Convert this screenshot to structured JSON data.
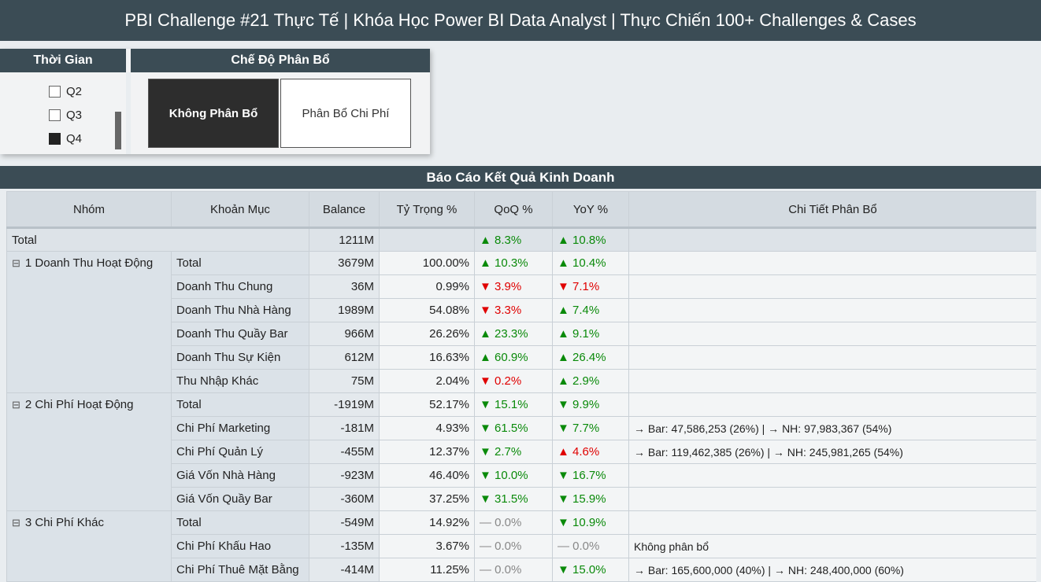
{
  "header": {
    "title": "PBI Challenge #21 Thực Tế | Khóa Học Power BI Data Analyst | Thực Chiến 100+ Challenges & Cases"
  },
  "time_slicer": {
    "title": "Thời Gian",
    "options": [
      {
        "label": "Q2",
        "checked": false
      },
      {
        "label": "Q3",
        "checked": false
      },
      {
        "label": "Q4",
        "checked": true
      }
    ]
  },
  "mode_slicer": {
    "title": "Chế Độ Phân Bổ",
    "options": [
      {
        "label": "Không Phân Bổ",
        "selected": true
      },
      {
        "label": "Phân Bổ Chi Phí",
        "selected": false
      }
    ]
  },
  "report": {
    "title": "Báo Cáo Kết Quả Kinh Doanh",
    "columns": [
      "Nhóm",
      "Khoản Mục",
      "Balance",
      "Tỷ Trọng %",
      "QoQ %",
      "YoY %",
      "Chi Tiết Phân Bổ"
    ],
    "total_row": {
      "label": "Total",
      "balance": "1211M",
      "qoq": "▲ 8.3%",
      "qoq_color": "#0a8a0a",
      "yoy": "▲ 10.8%",
      "yoy_color": "#0a8a0a"
    },
    "groups": [
      {
        "name": "1 Doanh Thu Hoạt Động",
        "rows": [
          {
            "item": "Total",
            "balance": "3679M",
            "share": "100.00%",
            "qoq": "▲ 10.3%",
            "qoq_color": "#0a8a0a",
            "yoy": "▲ 10.4%",
            "yoy_color": "#0a8a0a"
          },
          {
            "item": "Doanh Thu Chung",
            "balance": "36M",
            "share": "0.99%",
            "qoq": "▼ 3.9%",
            "qoq_color": "#e00000",
            "yoy": "▼ 7.1%",
            "yoy_color": "#e00000"
          },
          {
            "item": "Doanh Thu Nhà Hàng",
            "balance": "1989M",
            "share": "54.08%",
            "qoq": "▼ 3.3%",
            "qoq_color": "#e00000",
            "yoy": "▲ 7.4%",
            "yoy_color": "#0a8a0a"
          },
          {
            "item": "Doanh Thu Quầy Bar",
            "balance": "966M",
            "share": "26.26%",
            "qoq": "▲ 23.3%",
            "qoq_color": "#0a8a0a",
            "yoy": "▲ 9.1%",
            "yoy_color": "#0a8a0a"
          },
          {
            "item": "Doanh Thu Sự Kiện",
            "balance": "612M",
            "share": "16.63%",
            "qoq": "▲ 60.9%",
            "qoq_color": "#0a8a0a",
            "yoy": "▲ 26.4%",
            "yoy_color": "#0a8a0a"
          },
          {
            "item": "Thu Nhập Khác",
            "balance": "75M",
            "share": "2.04%",
            "qoq": "▼ 0.2%",
            "qoq_color": "#e00000",
            "yoy": "▲ 2.9%",
            "yoy_color": "#0a8a0a"
          }
        ]
      },
      {
        "name": "2 Chi Phí Hoạt Động",
        "rows": [
          {
            "item": "Total",
            "balance": "-1919M",
            "share": "52.17%",
            "qoq": "▼ 15.1%",
            "qoq_color": "#0a8a0a",
            "yoy": "▼ 9.9%",
            "yoy_color": "#0a8a0a"
          },
          {
            "item": "Chi Phí Marketing",
            "balance": "-181M",
            "share": "4.93%",
            "qoq": "▼ 61.5%",
            "qoq_color": "#0a8a0a",
            "yoy": "▼ 7.7%",
            "yoy_color": "#0a8a0a",
            "detail": "→ Bar: 47,586,253 (26%) | → NH: 97,983,367 (54%)"
          },
          {
            "item": "Chi Phí Quản Lý",
            "balance": "-455M",
            "share": "12.37%",
            "qoq": "▼ 2.7%",
            "qoq_color": "#0a8a0a",
            "yoy": "▲ 4.6%",
            "yoy_color": "#e00000",
            "detail": "→ Bar: 119,462,385 (26%) | → NH: 245,981,265 (54%)"
          },
          {
            "item": "Giá Vốn Nhà Hàng",
            "balance": "-923M",
            "share": "46.40%",
            "qoq": "▼ 10.0%",
            "qoq_color": "#0a8a0a",
            "yoy": "▼ 16.7%",
            "yoy_color": "#0a8a0a"
          },
          {
            "item": "Giá Vốn Quầy Bar",
            "balance": "-360M",
            "share": "37.25%",
            "qoq": "▼ 31.5%",
            "qoq_color": "#0a8a0a",
            "yoy": "▼ 15.9%",
            "yoy_color": "#0a8a0a"
          }
        ]
      },
      {
        "name": "3 Chi Phí Khác",
        "rows": [
          {
            "item": "Total",
            "balance": "-549M",
            "share": "14.92%",
            "qoq": "— 0.0%",
            "qoq_color": "#888888",
            "yoy": "▼ 10.9%",
            "yoy_color": "#0a8a0a"
          },
          {
            "item": "Chi Phí Khấu Hao",
            "balance": "-135M",
            "share": "3.67%",
            "qoq": "— 0.0%",
            "qoq_color": "#888888",
            "yoy": "— 0.0%",
            "yoy_color": "#888888",
            "detail": "Không phân bổ"
          },
          {
            "item": "Chi Phí Thuê Mặt Bằng",
            "balance": "-414M",
            "share": "11.25%",
            "qoq": "— 0.0%",
            "qoq_color": "#888888",
            "yoy": "▼ 15.0%",
            "yoy_color": "#0a8a0a",
            "detail": "→ Bar: 165,600,000 (40%) | → NH: 248,400,000 (60%)"
          }
        ]
      }
    ]
  }
}
